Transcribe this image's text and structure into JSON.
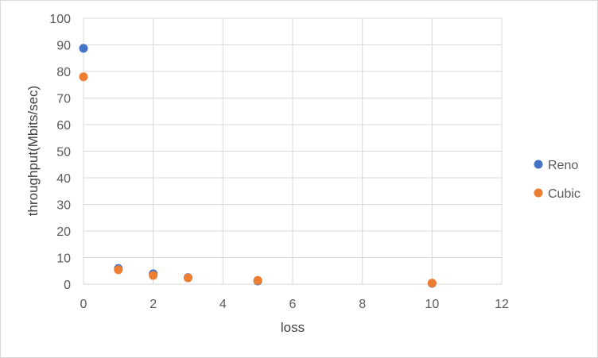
{
  "chart_data": {
    "type": "scatter",
    "title": "",
    "xlabel": "loss",
    "ylabel": "throughput(Mbits/sec)",
    "xlim": [
      0,
      12
    ],
    "ylim": [
      0,
      100
    ],
    "xticks": [
      "0",
      "2",
      "4",
      "6",
      "8",
      "10",
      "12"
    ],
    "yticks": [
      "0",
      "10",
      "20",
      "30",
      "40",
      "50",
      "60",
      "70",
      "80",
      "90",
      "100"
    ],
    "grid": true,
    "legend_position": "right",
    "series": [
      {
        "name": "Reno",
        "color": "#4472c4",
        "points": [
          {
            "x": 0,
            "y": 88.7
          },
          {
            "x": 1,
            "y": 5.9
          },
          {
            "x": 2,
            "y": 3.9
          },
          {
            "x": 3,
            "y": 2.5
          },
          {
            "x": 5,
            "y": 1.2
          },
          {
            "x": 10,
            "y": 0.3
          }
        ]
      },
      {
        "name": "Cubic",
        "color": "#ed7d31",
        "points": [
          {
            "x": 0,
            "y": 78.0
          },
          {
            "x": 1,
            "y": 5.4
          },
          {
            "x": 2,
            "y": 3.3
          },
          {
            "x": 3,
            "y": 2.4
          },
          {
            "x": 5,
            "y": 1.4
          },
          {
            "x": 10,
            "y": 0.4
          }
        ]
      }
    ]
  }
}
